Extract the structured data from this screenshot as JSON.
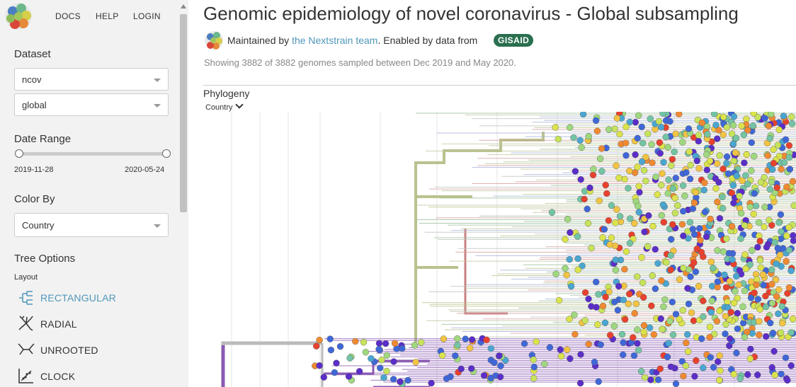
{
  "nav": {
    "docs": "DOCS",
    "help": "HELP",
    "login": "LOGIN"
  },
  "sidebar": {
    "dataset_heading": "Dataset",
    "dataset_select": "ncov",
    "region_select": "global",
    "date_range_heading": "Date Range",
    "date_start": "2019-11-28",
    "date_end": "2020-05-24",
    "color_by_heading": "Color By",
    "color_by_select": "Country",
    "tree_options_heading": "Tree Options",
    "layout_label": "Layout",
    "layouts": [
      {
        "label": "RECTANGULAR",
        "icon": "rectangular-tree-icon",
        "selected": true
      },
      {
        "label": "RADIAL",
        "icon": "radial-tree-icon",
        "selected": false
      },
      {
        "label": "UNROOTED",
        "icon": "unrooted-tree-icon",
        "selected": false
      },
      {
        "label": "CLOCK",
        "icon": "clock-tree-icon",
        "selected": false
      }
    ]
  },
  "header": {
    "title": "Genomic epidemiology of novel coronavirus - Global subsampling",
    "maintained_prefix": "Maintained by ",
    "maintainer_link": "the Nextstrain team",
    "enabled_text": ". Enabled by data from",
    "gisaid_logo": "GISAID",
    "showing": "Showing 3882 of 3882 genomes sampled between Dec 2019 and May 2020."
  },
  "panel": {
    "phylogeny_heading": "Phylogeny",
    "legend_toggle": "Country"
  },
  "colors": {
    "accent": "#5097ba",
    "sidebar_bg": "#f2f2f2",
    "tip_colors": [
      "#e8412e",
      "#f2c443",
      "#c7e35b",
      "#9fd87f",
      "#73c4a4",
      "#4aa6d0",
      "#3f67d8",
      "#5b2ec9",
      "#dbe34b",
      "#f08a32"
    ]
  }
}
